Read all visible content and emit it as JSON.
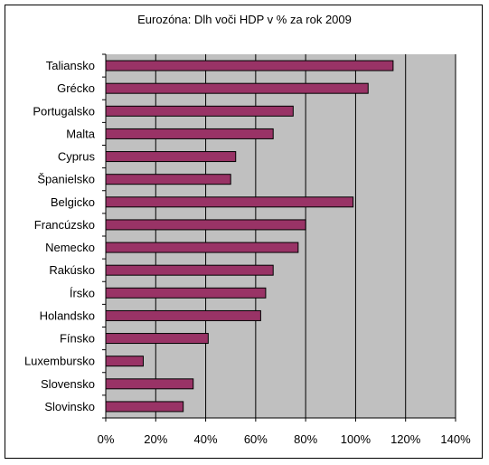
{
  "chart_data": {
    "type": "bar",
    "orientation": "horizontal",
    "title": "Eurozóna: Dlh voči HDP v % za rok 2009",
    "categories": [
      "Taliansko",
      "Grécko",
      "Portugalsko",
      "Malta",
      "Cyprus",
      "Španielsko",
      "Belgicko",
      "Francúzsko",
      "Nemecko",
      "Rakúsko",
      "Írsko",
      "Holandsko",
      "Fínsko",
      "Luxembursko",
      "Slovensko",
      "Slovinsko"
    ],
    "values": [
      115,
      105,
      75,
      67,
      52,
      50,
      99,
      80,
      77,
      67,
      64,
      62,
      41,
      15,
      35,
      31
    ],
    "xlim": [
      0,
      140
    ],
    "x_ticks": [
      0,
      20,
      40,
      60,
      80,
      100,
      120,
      140
    ],
    "x_tick_labels": [
      "0%",
      "20%",
      "40%",
      "60%",
      "80%",
      "100%",
      "120%",
      "140%"
    ],
    "grid": true,
    "legend": "none",
    "colors": {
      "bar_fill": "#993366",
      "bar_stroke": "#000000",
      "plot_background": "#c0c0c0",
      "gridline": "#000000"
    }
  }
}
